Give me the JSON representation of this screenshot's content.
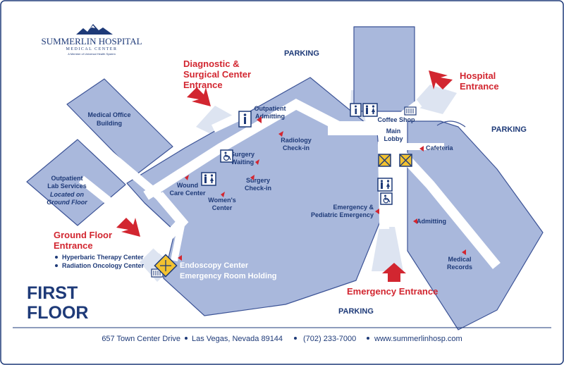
{
  "logo": {
    "name": "SUMMERLIN HOSPITAL",
    "sub": "MEDICAL CENTER",
    "member": "A Member of Universal Health System"
  },
  "floor_title": {
    "line1": "FIRST",
    "line2": "FLOOR"
  },
  "parking": {
    "top": "PARKING",
    "right": "PARKING",
    "bottom": "PARKING"
  },
  "entrances": {
    "diagnostic": [
      "Diagnostic &",
      "Surgical Center",
      "Entrance"
    ],
    "hospital": [
      "Hospital",
      "Entrance"
    ],
    "ground_floor": [
      "Ground Floor",
      "Entrance"
    ],
    "emergency": "Emergency Entrance"
  },
  "ground_floor_services": [
    "Hyperbaric Therapy Center",
    "Radiation Oncology Center"
  ],
  "endoscopy": [
    "Endoscopy Center",
    "Emergency Room Holding"
  ],
  "labels": {
    "medical_office": [
      "Medical Office",
      "Building"
    ],
    "outpatient_lab": [
      "Outpatient",
      "Lab Services"
    ],
    "outpatient_lab_note": [
      "Located on",
      "Ground Floor"
    ],
    "outpatient_admitting": [
      "Outpatient",
      "Admitting"
    ],
    "radiology": [
      "Radiology",
      "Check-in"
    ],
    "surgery_waiting": [
      "Surgery",
      "Waiting"
    ],
    "surgery_checkin": [
      "Surgery",
      "Check-in"
    ],
    "wound_care": [
      "Wound",
      "Care Center"
    ],
    "womens_center": [
      "Women's",
      "Center"
    ],
    "coffee_shop": "Coffee Shop",
    "main_lobby": [
      "Main",
      "Lobby"
    ],
    "cafeteria": "Cafeteria",
    "emergency_pediatric": [
      "Emergency &",
      "Pediatric Emergency"
    ],
    "admitting": "Admitting",
    "medical_records": [
      "Medical",
      "Records"
    ]
  },
  "footer": {
    "address": "657 Town Center Drive",
    "city": "Las Vegas, Nevada 89144",
    "phone": "(702) 233-7000",
    "web": "www.summerlinhosp.com"
  },
  "colors": {
    "building": "#a9b8dc",
    "outline": "#3c5396",
    "corridor": "#ffffff",
    "entrance_glow": "#dde4f1",
    "text_blue": "#1e3a78",
    "entrance_red": "#d22630",
    "elevator": "#f2c230"
  },
  "icons": [
    "information-icon",
    "restroom-icon",
    "elevator-icon",
    "wheelchair-icon",
    "vending-icon"
  ]
}
